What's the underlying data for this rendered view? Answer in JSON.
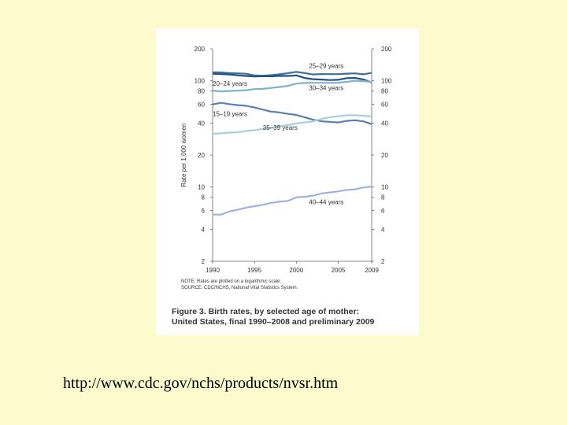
{
  "page": {
    "background": "#fdfbcd",
    "url_text": "http://www.cdc.gov/nchs/products/nvsr.htm"
  },
  "figure": {
    "note_line1": "NOTE: Rates are plotted on a logarithmic scale.",
    "note_line2": "SOURCE: CDC/NCHS, National Vital Statistics System.",
    "caption_line1": "Figure 3. Birth rates, by selected age of mother:",
    "caption_line2": "United States, final 1990–2008 and preliminary 2009"
  },
  "chart_data": {
    "type": "line",
    "title": "",
    "xlabel": "",
    "ylabel": "Rate per 1,000 women",
    "yscale": "log",
    "ylim": [
      2,
      200
    ],
    "xlim": [
      1990,
      2009
    ],
    "x_ticks": [
      1990,
      1995,
      2000,
      2005,
      2009
    ],
    "y_ticks": [
      2,
      4,
      6,
      8,
      10,
      20,
      40,
      60,
      80,
      100,
      200
    ],
    "grid": false,
    "x": [
      1990,
      1991,
      1992,
      1993,
      1994,
      1995,
      1996,
      1997,
      1998,
      1999,
      2000,
      2001,
      2002,
      2003,
      2004,
      2005,
      2006,
      2007,
      2008,
      2009
    ],
    "series": [
      {
        "name": "25–29 years",
        "color": "#3d6f9a",
        "values": [
          120.2,
          119.9,
          118.2,
          117.5,
          116.5,
          112.2,
          111.7,
          112.9,
          115.1,
          117.8,
          121.4,
          118.1,
          114.7,
          115.6,
          115.5,
          115.5,
          116.7,
          117.5,
          115.1,
          118.7
        ]
      },
      {
        "name": "20–24 years",
        "color": "#24527e",
        "values": [
          116.5,
          115.7,
          114.6,
          112.6,
          111.1,
          109.8,
          110.4,
          110.1,
          111.2,
          111.0,
          112.3,
          106.2,
          103.6,
          102.6,
          101.7,
          102.2,
          105.9,
          106.3,
          103.0,
          96.3
        ]
      },
      {
        "name": "30–34 years",
        "color": "#7fb3cc",
        "values": [
          80.8,
          79.5,
          80.2,
          80.8,
          81.5,
          83.5,
          83.9,
          85.7,
          87.4,
          89.6,
          94.1,
          95.3,
          95.5,
          95.7,
          95.6,
          95.9,
          97.7,
          99.9,
          99.4,
          97.5
        ]
      },
      {
        "name": "15–19 years",
        "color": "#5b7fb0",
        "values": [
          59.9,
          62.1,
          60.3,
          59.0,
          58.2,
          56.0,
          53.5,
          51.3,
          50.3,
          48.8,
          47.7,
          45.3,
          43.0,
          41.6,
          41.1,
          40.5,
          41.9,
          42.5,
          41.5,
          39.1
        ]
      },
      {
        "name": "35–39 years",
        "color": "#a9cfdc",
        "values": [
          31.7,
          32.0,
          32.5,
          32.7,
          33.7,
          34.3,
          35.3,
          36.1,
          37.4,
          38.3,
          39.7,
          40.6,
          41.4,
          43.8,
          45.4,
          46.3,
          47.3,
          47.5,
          46.9,
          46.1
        ]
      },
      {
        "name": "40–44 years",
        "color": "#9fb3d9",
        "values": [
          5.5,
          5.5,
          5.9,
          6.1,
          6.4,
          6.6,
          6.8,
          7.1,
          7.3,
          7.4,
          8.0,
          8.1,
          8.3,
          8.7,
          8.9,
          9.1,
          9.4,
          9.5,
          9.9,
          10.1
        ]
      }
    ]
  }
}
